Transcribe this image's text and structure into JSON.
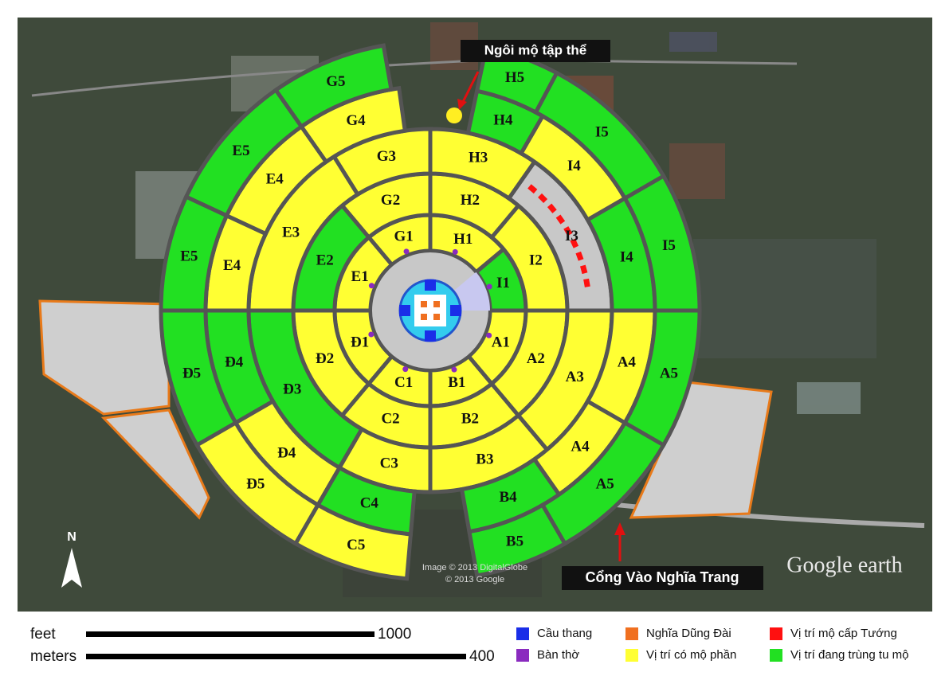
{
  "annotations": {
    "mass_grave": "Ngôi mộ tập thể",
    "gate": "Cổng Vào Nghĩa Trang"
  },
  "sections": [
    "I1",
    "H1",
    "G1",
    "E1",
    "Đ1",
    "C1",
    "B1",
    "A1",
    "I2",
    "H2",
    "G2",
    "E2",
    "Đ2",
    "C2",
    "B2",
    "A2",
    "I3",
    "H3",
    "G3",
    "E3",
    "Đ3",
    "C3",
    "B3",
    "A3",
    "I4",
    "I4",
    "H4",
    "G4",
    "E4",
    "E4",
    "Đ4",
    "Đ4",
    "C4",
    "B4",
    "A4",
    "A4",
    "I5",
    "I5",
    "H5",
    "G5",
    "E5",
    "E5",
    "Đ5",
    "Đ5",
    "C5",
    "B5",
    "A5",
    "A5"
  ],
  "north": "N",
  "credits": [
    "Image © 2013 DigitalGlobe",
    "© 2013 Google"
  ],
  "brand": "Google earth",
  "scale": [
    {
      "unit": "feet",
      "value": 1000
    },
    {
      "unit": "meters",
      "value": 400
    }
  ],
  "legend": [
    {
      "label": "Cầu thang",
      "color": "#1a2ee8"
    },
    {
      "label": "Bàn thờ",
      "color": "#8a2bbf"
    },
    {
      "label": "Nghĩa Dũng Đài",
      "color": "#f07020"
    },
    {
      "label": "Vị trí có mộ phần",
      "color": "#ffff33"
    },
    {
      "label": "Vị trí mộ cấp Tướng",
      "color": "#ff1010"
    },
    {
      "label": "Vị trí đang trùng tu mộ",
      "color": "#22e022"
    }
  ]
}
